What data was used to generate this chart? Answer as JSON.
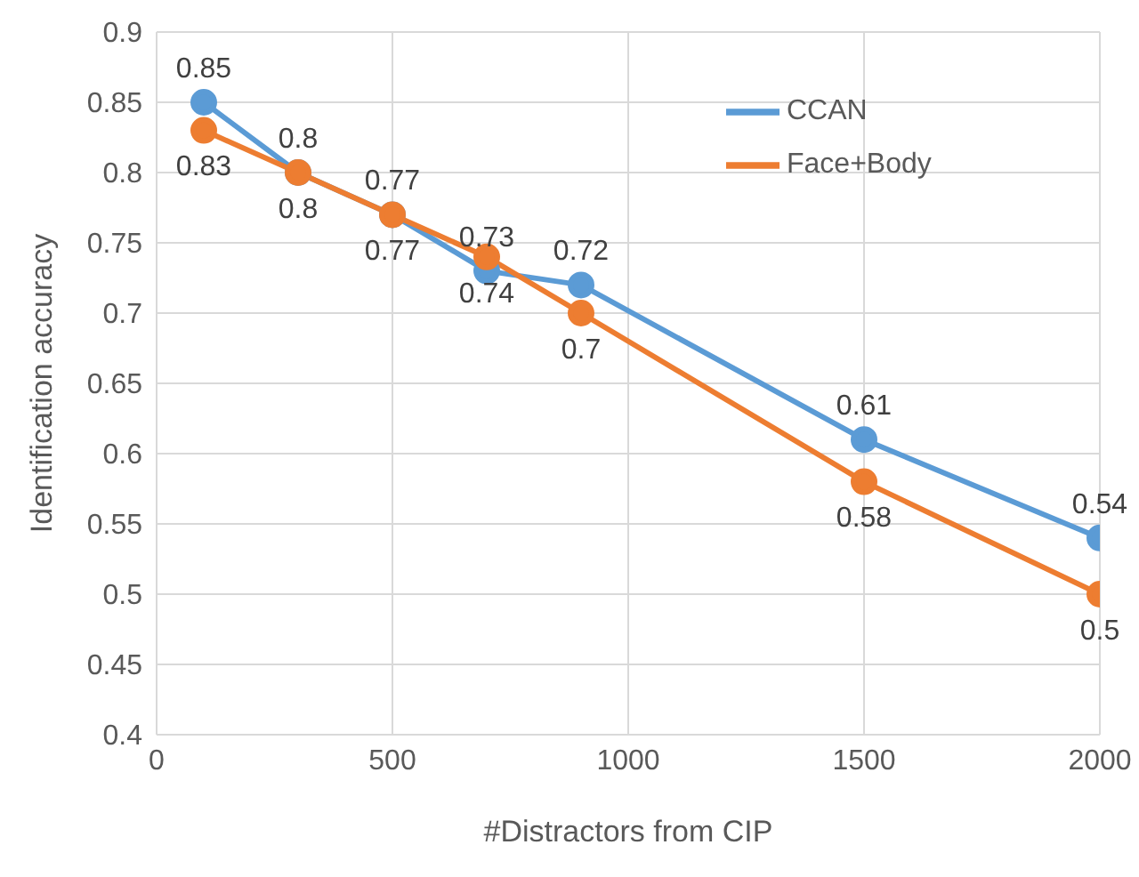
{
  "chart_data": {
    "type": "line",
    "xlabel": "#Distractors from CIP",
    "ylabel": "Identification accuracy",
    "x": [
      100,
      300,
      500,
      700,
      900,
      1500,
      2000
    ],
    "series": [
      {
        "name": "CCAN",
        "color": "#5b9bd5",
        "values": [
          0.85,
          0.8,
          0.77,
          0.73,
          0.72,
          0.61,
          0.54
        ]
      },
      {
        "name": "Face+Body",
        "color": "#ed7d31",
        "values": [
          0.83,
          0.8,
          0.77,
          0.74,
          0.7,
          0.58,
          0.5
        ]
      }
    ],
    "xlim": [
      0,
      2000
    ],
    "xticks": [
      0,
      500,
      1000,
      1500,
      2000
    ],
    "ylim": [
      0.4,
      0.9
    ],
    "yticks": [
      0.4,
      0.45,
      0.5,
      0.55,
      0.6,
      0.65,
      0.7,
      0.75,
      0.8,
      0.85,
      0.9
    ],
    "grid": true,
    "legend": "top right",
    "marker": "circle",
    "line_style": "solid",
    "data_labels": true
  }
}
